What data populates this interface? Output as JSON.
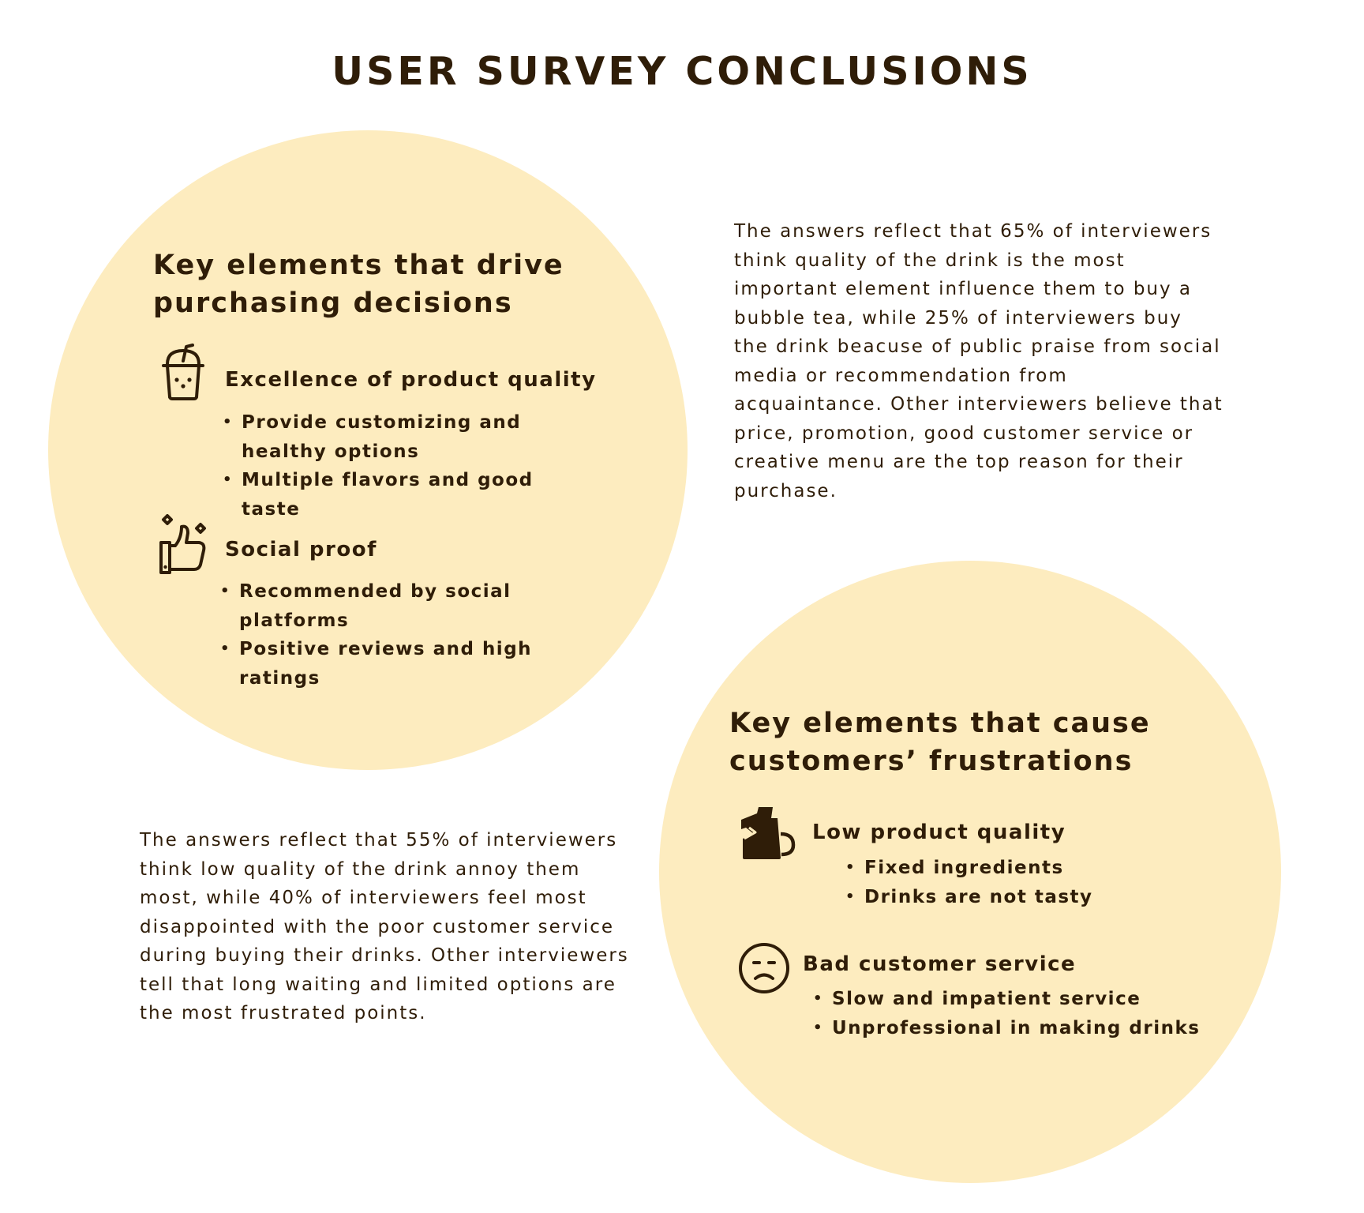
{
  "title": "USER SURVEY CONCLUSIONS",
  "colors": {
    "text": "#2f1d08",
    "circle": "#fdecbf",
    "background": "#ffffff"
  },
  "drivers": {
    "heading_line1": "Key elements that drive",
    "heading_line2": "purchasing decisions",
    "items": [
      {
        "icon": "bubble-tea-cup-icon",
        "title": "Excellence of product quality",
        "bullets": [
          "Provide customizing and healthy options",
          "Multiple flavors and good taste"
        ]
      },
      {
        "icon": "thumbs-up-sparkle-icon",
        "title": "Social proof",
        "bullets": [
          "Recommended by social platforms",
          "Positive reviews and high ratings"
        ]
      }
    ],
    "summary": "The answers reflect that 65% of interviewers think quality of the drink is the most important element influence them to buy a bubble tea, while 25% of interviewers buy the drink beacuse of public praise from social media or recommendation from acquaintance. Other interviewers believe that price, promotion, good customer service or creative menu are the top reason for their purchase."
  },
  "frustrations": {
    "heading_line1": "Key elements that cause",
    "heading_line2": "customers’ frustrations",
    "items": [
      {
        "icon": "broken-mug-icon",
        "title": "Low product quality",
        "bullets": [
          "Fixed ingredients",
          "Drinks are not tasty"
        ]
      },
      {
        "icon": "sad-face-icon",
        "title": "Bad customer service",
        "bullets": [
          "Slow and impatient service",
          "Unprofessional in making drinks"
        ]
      }
    ],
    "summary": "The answers reflect that 55% of interviewers think low quality of the drink annoy them most, while 40% of interviewers feel most disappointed with the poor customer service during buying their drinks. Other interviewers tell that long waiting and limited options are the most frustrated points."
  }
}
